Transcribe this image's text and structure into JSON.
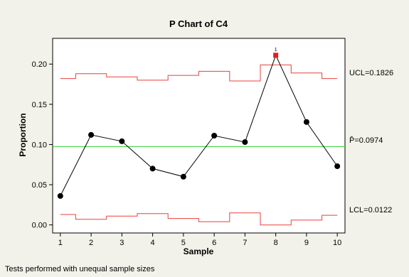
{
  "chart_data": {
    "type": "line",
    "title": "P Chart of C4",
    "xlabel": "Sample",
    "ylabel": "Proportion",
    "x": [
      1,
      2,
      3,
      4,
      5,
      6,
      7,
      8,
      9,
      10
    ],
    "x_ticks": [
      1,
      2,
      3,
      4,
      5,
      6,
      7,
      8,
      9,
      10
    ],
    "xlim": [
      0.75,
      10.25
    ],
    "ylim": [
      -0.01,
      0.232
    ],
    "y_ticks": [
      "0.00",
      "0.05",
      "0.10",
      "0.15",
      "0.20"
    ],
    "series": [
      {
        "values": [
          0.036,
          0.112,
          0.104,
          0.07,
          0.06,
          0.111,
          0.103,
          0.211,
          0.128,
          0.073
        ],
        "color": "#000000"
      }
    ],
    "ucl_steps": [
      0.182,
      0.188,
      0.184,
      0.18,
      0.186,
      0.191,
      0.179,
      0.199,
      0.189,
      0.182
    ],
    "lcl_steps": [
      0.013,
      0.007,
      0.011,
      0.014,
      0.008,
      0.004,
      0.015,
      0.0,
      0.006,
      0.012
    ],
    "center": 0.0974,
    "out_of_control": [
      {
        "sample": 8,
        "test_label": "1"
      }
    ],
    "limit_labels": {
      "ucl": "UCL=0.1826",
      "center": "P̄=0.0974",
      "lcl": "LCL=0.0122"
    },
    "colors": {
      "control_limits": "#e8403c",
      "center_line": "#2fd12f",
      "points": "#000000",
      "out_of_control": "#e02020"
    },
    "grid": false,
    "footnote": "Tests performed with unequal sample sizes"
  }
}
